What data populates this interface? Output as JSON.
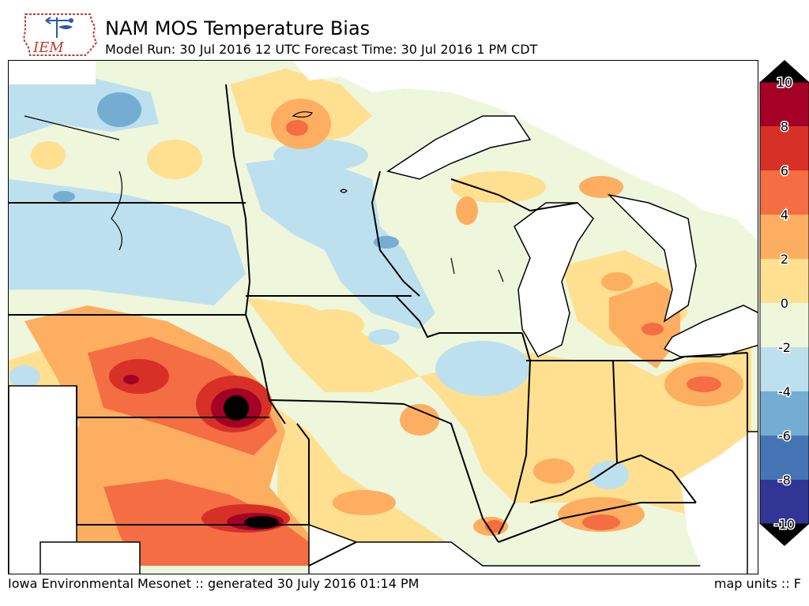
{
  "header": {
    "title": "NAM MOS Temperature Bias",
    "subtitle": "Model Run: 30 Jul 2016 12 UTC Forecast Time: 30 Jul 2016 1 PM CDT",
    "logo_text": "IEM"
  },
  "footer": {
    "left": "Iowa Environmental Mesonet :: generated 30 July 2016 01:14 PM",
    "right": "map units :: F"
  },
  "colorbar": {
    "labels": [
      "10",
      "8",
      "6",
      "4",
      "2",
      "0",
      "-2",
      "-4",
      "-6",
      "-8",
      "-10"
    ],
    "colors": [
      "#000000",
      "#a50026",
      "#d73027",
      "#f46d43",
      "#fdae61",
      "#fee090",
      "#eef6dc",
      "#bde0ee",
      "#74add1",
      "#4575b4",
      "#313695",
      "#000000"
    ]
  }
}
